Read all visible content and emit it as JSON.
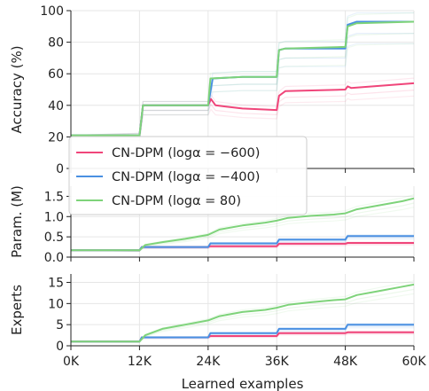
{
  "chart_data": {
    "type": "line",
    "xlabel": "Learned examples",
    "x_tick_labels": [
      "0K",
      "12K",
      "24K",
      "36K",
      "48K",
      "60K"
    ],
    "x_ticks": [
      0,
      12000,
      24000,
      36000,
      48000,
      60000
    ],
    "xlim": [
      0,
      60000
    ],
    "grid": true,
    "legend_placement": "lower-left of top panel",
    "legend": [
      {
        "label": "CN-DPM (logα = −600)",
        "color": "#f0457a"
      },
      {
        "label": "CN-DPM (logα = −400)",
        "color": "#4a90e2"
      },
      {
        "label": "CN-DPM (logα = 80)",
        "color": "#7ed37a"
      }
    ],
    "panels": [
      {
        "ylabel": "Accuracy (%)",
        "ylim": [
          0,
          100
        ],
        "y_ticks": [
          0,
          20,
          40,
          60,
          80,
          100
        ],
        "y_tick_labels": [
          "0",
          "20",
          "40",
          "60",
          "80",
          "100"
        ],
        "series": [
          {
            "color": "#f0457a",
            "points": [
              [
                0,
                21
              ],
              [
                12000,
                21
              ],
              [
                12600,
                40
              ],
              [
                24000,
                40
              ],
              [
                24500,
                44
              ],
              [
                25300,
                40
              ],
              [
                30000,
                38
              ],
              [
                36000,
                37
              ],
              [
                36400,
                46
              ],
              [
                37500,
                49
              ],
              [
                48000,
                50
              ],
              [
                48400,
                52
              ],
              [
                49000,
                51
              ],
              [
                60000,
                54
              ]
            ]
          },
          {
            "color": "#4a90e2",
            "points": [
              [
                0,
                21
              ],
              [
                12000,
                21
              ],
              [
                12600,
                40
              ],
              [
                24000,
                40
              ],
              [
                24800,
                57
              ],
              [
                30000,
                58
              ],
              [
                36000,
                58
              ],
              [
                36400,
                75
              ],
              [
                37500,
                76
              ],
              [
                48000,
                76
              ],
              [
                48400,
                91
              ],
              [
                50000,
                93
              ],
              [
                60000,
                93
              ]
            ]
          },
          {
            "color": "#7ed37a",
            "points": [
              [
                0,
                21
              ],
              [
                12000,
                21
              ],
              [
                12600,
                40
              ],
              [
                24000,
                40
              ],
              [
                24400,
                57
              ],
              [
                30000,
                58
              ],
              [
                36000,
                58
              ],
              [
                36400,
                75
              ],
              [
                37500,
                76
              ],
              [
                48000,
                77
              ],
              [
                48400,
                90
              ],
              [
                50000,
                92
              ],
              [
                60000,
                93
              ]
            ]
          }
        ]
      },
      {
        "ylabel": "Param. (M)",
        "ylim": [
          0,
          1.75
        ],
        "y_ticks": [
          0,
          0.5,
          1.0,
          1.5
        ],
        "y_tick_labels": [
          "0.0",
          "0.5",
          "1.0",
          "1.5"
        ],
        "series": [
          {
            "color": "#f0457a",
            "points": [
              [
                0,
                0.17
              ],
              [
                12000,
                0.17
              ],
              [
                12400,
                0.25
              ],
              [
                24000,
                0.25
              ],
              [
                24400,
                0.27
              ],
              [
                36000,
                0.27
              ],
              [
                36400,
                0.33
              ],
              [
                48000,
                0.33
              ],
              [
                48400,
                0.35
              ],
              [
                60000,
                0.35
              ]
            ]
          },
          {
            "color": "#4a90e2",
            "points": [
              [
                0,
                0.17
              ],
              [
                12000,
                0.17
              ],
              [
                12400,
                0.25
              ],
              [
                24000,
                0.25
              ],
              [
                24400,
                0.34
              ],
              [
                36000,
                0.34
              ],
              [
                36400,
                0.43
              ],
              [
                48000,
                0.43
              ],
              [
                48400,
                0.52
              ],
              [
                60000,
                0.52
              ]
            ]
          },
          {
            "color": "#7ed37a",
            "points": [
              [
                0,
                0.17
              ],
              [
                12000,
                0.17
              ],
              [
                13000,
                0.3
              ],
              [
                16000,
                0.37
              ],
              [
                20000,
                0.45
              ],
              [
                24000,
                0.55
              ],
              [
                26000,
                0.68
              ],
              [
                30000,
                0.78
              ],
              [
                34000,
                0.85
              ],
              [
                36000,
                0.9
              ],
              [
                38000,
                0.97
              ],
              [
                42000,
                1.02
              ],
              [
                46000,
                1.05
              ],
              [
                48000,
                1.08
              ],
              [
                50000,
                1.18
              ],
              [
                54000,
                1.28
              ],
              [
                58000,
                1.38
              ],
              [
                60000,
                1.45
              ]
            ]
          }
        ]
      },
      {
        "ylabel": "Experts",
        "ylim": [
          0,
          17
        ],
        "y_ticks": [
          0,
          5,
          10,
          15
        ],
        "y_tick_labels": [
          "0",
          "5",
          "10",
          "15"
        ],
        "series": [
          {
            "color": "#f0457a",
            "points": [
              [
                0,
                1
              ],
              [
                12000,
                1
              ],
              [
                12400,
                2
              ],
              [
                24000,
                2
              ],
              [
                24400,
                2.3
              ],
              [
                36000,
                2.3
              ],
              [
                36400,
                3
              ],
              [
                48000,
                3
              ],
              [
                48400,
                3.2
              ],
              [
                60000,
                3.2
              ]
            ]
          },
          {
            "color": "#4a90e2",
            "points": [
              [
                0,
                1
              ],
              [
                12000,
                1
              ],
              [
                12400,
                2
              ],
              [
                24000,
                2
              ],
              [
                24400,
                3
              ],
              [
                36000,
                3
              ],
              [
                36400,
                4
              ],
              [
                48000,
                4
              ],
              [
                48400,
                5
              ],
              [
                60000,
                5
              ]
            ]
          },
          {
            "color": "#7ed37a",
            "points": [
              [
                0,
                1
              ],
              [
                12000,
                1
              ],
              [
                13000,
                2.5
              ],
              [
                16000,
                4
              ],
              [
                20000,
                5
              ],
              [
                24000,
                6
              ],
              [
                26000,
                7
              ],
              [
                30000,
                8
              ],
              [
                34000,
                8.5
              ],
              [
                36000,
                9
              ],
              [
                38000,
                9.7
              ],
              [
                42000,
                10.3
              ],
              [
                46000,
                10.8
              ],
              [
                48000,
                11
              ],
              [
                50000,
                12
              ],
              [
                54000,
                13
              ],
              [
                58000,
                14
              ],
              [
                60000,
                14.5
              ]
            ]
          }
        ]
      }
    ]
  }
}
